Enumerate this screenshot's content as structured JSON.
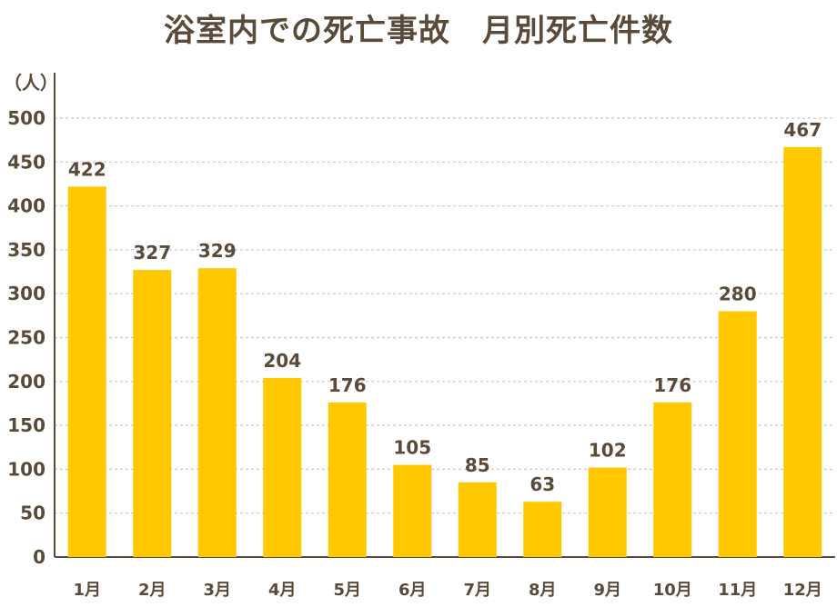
{
  "chart_data": {
    "type": "bar",
    "title": "浴室内での死亡事故　月別死亡件数",
    "unit_label": "（人）",
    "categories": [
      "1月",
      "2月",
      "3月",
      "4月",
      "5月",
      "6月",
      "7月",
      "8月",
      "9月",
      "10月",
      "11月",
      "12月"
    ],
    "values": [
      422,
      327,
      329,
      204,
      176,
      105,
      85,
      63,
      102,
      176,
      280,
      467
    ],
    "yticks": [
      0,
      50,
      100,
      150,
      200,
      250,
      300,
      350,
      400,
      450,
      500
    ],
    "ylim": [
      0,
      550
    ],
    "grid": true,
    "bar_color": "#ffc800",
    "text_color": "#5a4a3a",
    "grid_color": "#c8c8c8"
  }
}
